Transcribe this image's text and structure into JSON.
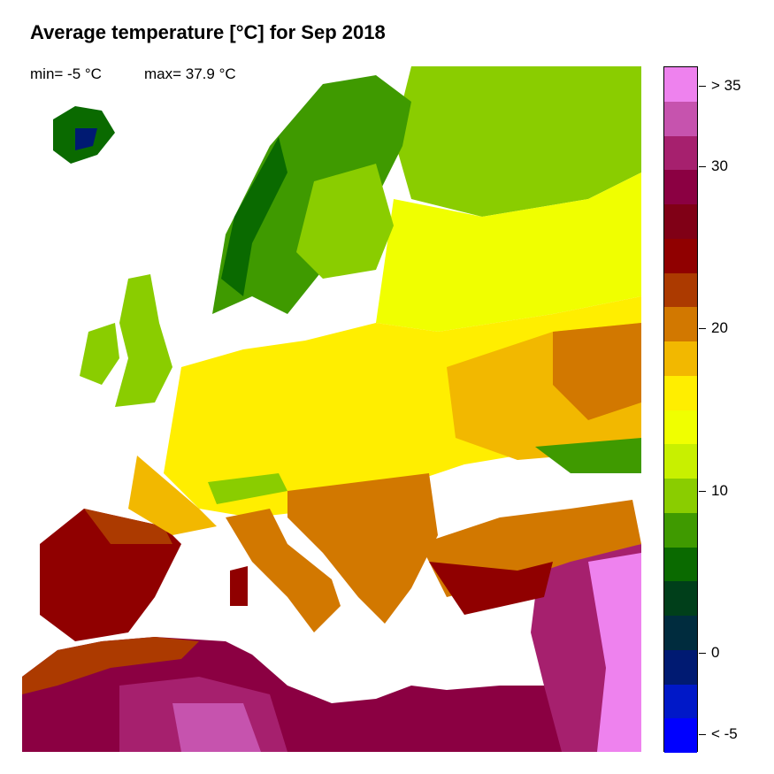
{
  "title": "Average temperature [°C] for Sep 2018",
  "stats": {
    "min": "min= -5 °C",
    "max": "max= 37.9 °C"
  },
  "legend": {
    "colors": [
      "#EE82EE",
      "#C653AE",
      "#A6206E",
      "#8B0042",
      "#800016",
      "#900000",
      "#AC3A00",
      "#D27800",
      "#F2B800",
      "#FFEE00",
      "#F0FF00",
      "#C8F000",
      "#8ACD00",
      "#3F9A00",
      "#0A6A00",
      "#003F1A",
      "#002C3E",
      "#001A72",
      "#0018C8",
      "#0000FF"
    ],
    "labels": [
      {
        "text": "> 35",
        "value": 35
      },
      {
        "text": "30",
        "value": 30
      },
      {
        "text": "20",
        "value": 20
      },
      {
        "text": "10",
        "value": 10
      },
      {
        "text": "0",
        "value": 0
      },
      {
        "text": "< -5",
        "value": -5
      }
    ]
  }
}
